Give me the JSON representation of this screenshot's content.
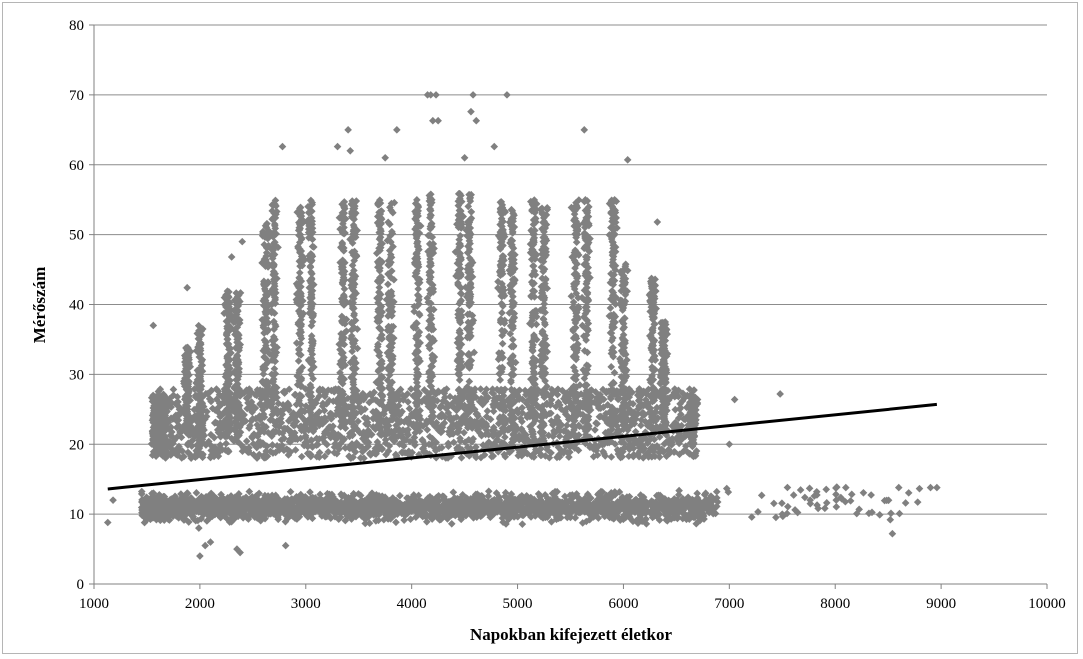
{
  "chart_data": {
    "type": "scatter",
    "title": "",
    "xlabel": "Napokban kifejezett  életkor",
    "ylabel": "Mérőszám",
    "xlim": [
      1000,
      10000
    ],
    "ylim": [
      0,
      80
    ],
    "x_ticks": [
      "1000",
      "2000",
      "3000",
      "4000",
      "5000",
      "6000",
      "7000",
      "8000",
      "9000",
      "10000"
    ],
    "y_ticks": [
      "0",
      "10",
      "20",
      "30",
      "40",
      "50",
      "60",
      "70",
      "80"
    ],
    "grid": "horizontal",
    "legend": "none",
    "marker_color": "#808080",
    "trend_color": "#000000",
    "trendline": {
      "x": [
        1130,
        8960
      ],
      "y": [
        13.6,
        25.7
      ]
    },
    "series": [
      {
        "marker": "diamond",
        "x": [
          1130,
          1180,
          1560,
          1610,
          1880,
          1990,
          2000,
          2050,
          2100,
          2300,
          2350,
          2380,
          2400,
          2780,
          2810,
          3300,
          3400,
          3420,
          3750,
          3860,
          4150,
          4180,
          4200,
          4230,
          4250,
          4500,
          4560,
          4580,
          4610,
          4780,
          4900,
          5630,
          6040,
          6320,
          6700,
          7000,
          7050,
          7480,
          7500,
          8100,
          8520,
          8540,
          8600,
          8900,
          8960
        ],
        "y": [
          8.8,
          12.0,
          37.0,
          27.0,
          42.4,
          8.0,
          4.0,
          5.5,
          6.0,
          46.8,
          5.0,
          4.5,
          49.0,
          62.6,
          5.5,
          62.6,
          65.0,
          62.0,
          61.0,
          65.0,
          70.0,
          70.0,
          66.3,
          70.0,
          66.3,
          61.0,
          67.6,
          70.0,
          66.3,
          62.6,
          70.0,
          65.0,
          60.7,
          51.8,
          26.4,
          20.0,
          26.4,
          27.2,
          10.0,
          13.8,
          9.2,
          7.2,
          13.8,
          13.8,
          13.8
        ]
      }
    ]
  }
}
